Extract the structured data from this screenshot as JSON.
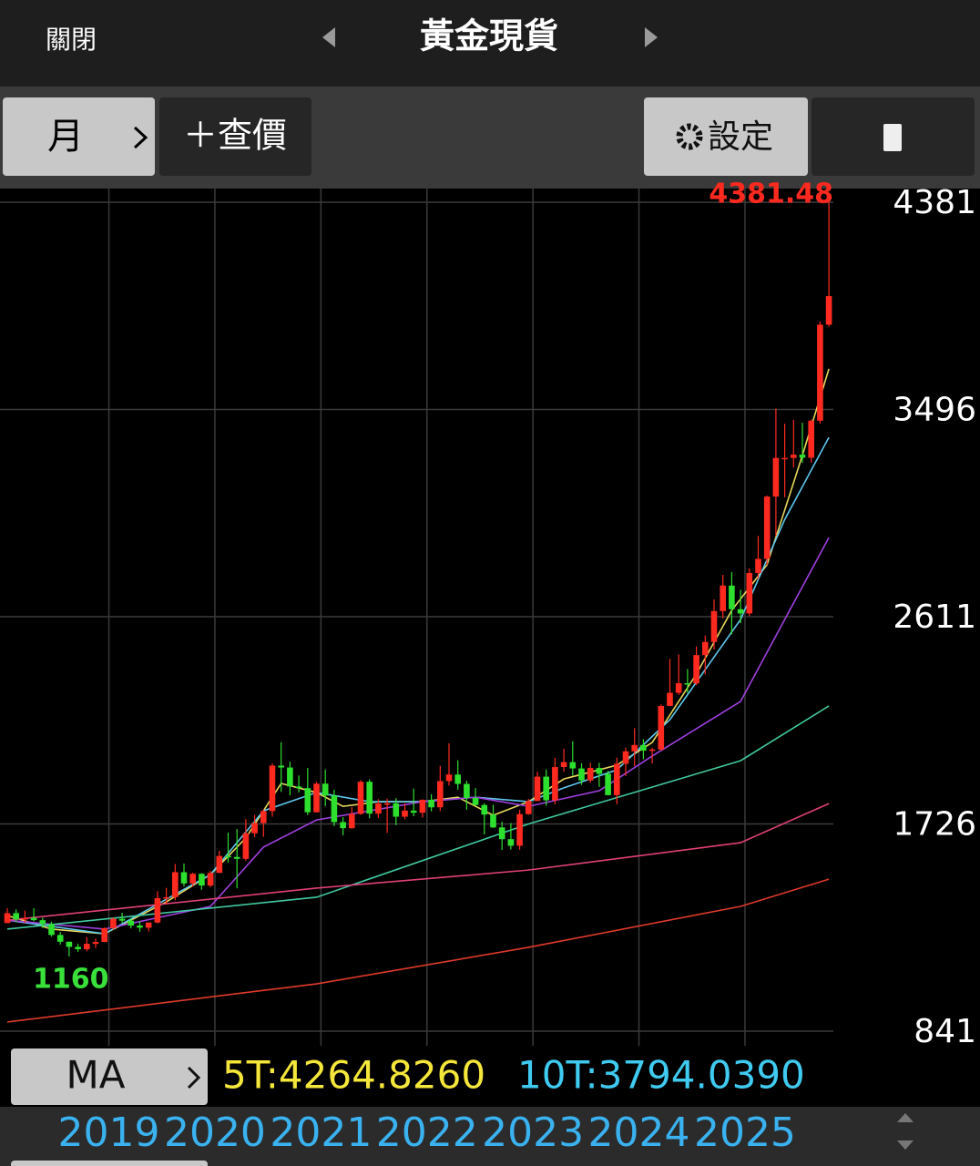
{
  "header": {
    "close": "關閉",
    "title": "黃金現貨"
  },
  "toolbar": {
    "period": "月",
    "quote": "＋查價",
    "settings": "設定"
  },
  "chart": {
    "type": "candlestick",
    "ylim": [
      841,
      4381
    ],
    "yticks": [
      4381,
      3496,
      2611,
      1726,
      841
    ],
    "high_label": 4381.48,
    "low_label": 1160,
    "years": [
      2019,
      2020,
      2021,
      2022,
      2023,
      2024,
      2025
    ],
    "candles": [
      [
        1303,
        1366,
        1302,
        1345
      ],
      [
        1345,
        1361,
        1307,
        1318
      ],
      [
        1318,
        1356,
        1303,
        1325
      ],
      [
        1325,
        1366,
        1310,
        1315
      ],
      [
        1315,
        1326,
        1282,
        1298
      ],
      [
        1298,
        1309,
        1245,
        1252
      ],
      [
        1252,
        1265,
        1211,
        1223
      ],
      [
        1223,
        1224,
        1160,
        1201
      ],
      [
        1201,
        1214,
        1180,
        1191
      ],
      [
        1191,
        1243,
        1182,
        1214
      ],
      [
        1214,
        1237,
        1196,
        1222
      ],
      [
        1222,
        1284,
        1221,
        1281
      ],
      [
        1281,
        1326,
        1275,
        1321
      ],
      [
        1321,
        1347,
        1303,
        1313
      ],
      [
        1313,
        1324,
        1280,
        1292
      ],
      [
        1292,
        1310,
        1266,
        1283
      ],
      [
        1283,
        1306,
        1267,
        1305
      ],
      [
        1305,
        1439,
        1301,
        1409
      ],
      [
        1409,
        1453,
        1382,
        1413
      ],
      [
        1413,
        1555,
        1400,
        1520
      ],
      [
        1520,
        1557,
        1459,
        1472
      ],
      [
        1472,
        1518,
        1458,
        1513
      ],
      [
        1513,
        1516,
        1445,
        1463
      ],
      [
        1463,
        1525,
        1455,
        1517
      ],
      [
        1517,
        1611,
        1517,
        1589
      ],
      [
        1589,
        1689,
        1562,
        1585
      ],
      [
        1585,
        1704,
        1451,
        1577
      ],
      [
        1577,
        1747,
        1568,
        1686
      ],
      [
        1686,
        1765,
        1670,
        1730
      ],
      [
        1730,
        1789,
        1671,
        1781
      ],
      [
        1781,
        1984,
        1757,
        1975
      ],
      [
        1975,
        2075,
        1863,
        1967
      ],
      [
        1967,
        1992,
        1848,
        1886
      ],
      [
        1886,
        1933,
        1860,
        1879
      ],
      [
        1879,
        1965,
        1764,
        1776
      ],
      [
        1776,
        1906,
        1775,
        1898
      ],
      [
        1898,
        1959,
        1802,
        1847
      ],
      [
        1847,
        1872,
        1717,
        1734
      ],
      [
        1734,
        1755,
        1677,
        1708
      ],
      [
        1708,
        1798,
        1705,
        1769
      ],
      [
        1769,
        1913,
        1765,
        1906
      ],
      [
        1906,
        1916,
        1750,
        1770
      ],
      [
        1770,
        1832,
        1751,
        1814
      ],
      [
        1814,
        1834,
        1688,
        1814
      ],
      [
        1814,
        1836,
        1721,
        1757
      ],
      [
        1757,
        1814,
        1746,
        1783
      ],
      [
        1783,
        1877,
        1759,
        1774
      ],
      [
        1774,
        1831,
        1753,
        1829
      ],
      [
        1829,
        1853,
        1780,
        1797
      ],
      [
        1797,
        1974,
        1781,
        1909
      ],
      [
        1909,
        2070,
        1890,
        1937
      ],
      [
        1937,
        1998,
        1872,
        1897
      ],
      [
        1897,
        1910,
        1787,
        1837
      ],
      [
        1837,
        1879,
        1805,
        1807
      ],
      [
        1807,
        1814,
        1681,
        1766
      ],
      [
        1766,
        1808,
        1709,
        1711
      ],
      [
        1711,
        1735,
        1615,
        1661
      ],
      [
        1661,
        1730,
        1617,
        1633
      ],
      [
        1633,
        1786,
        1616,
        1768
      ],
      [
        1768,
        1833,
        1765,
        1824
      ],
      [
        1824,
        1949,
        1823,
        1928
      ],
      [
        1928,
        1959,
        1804,
        1827
      ],
      [
        1827,
        2009,
        1810,
        1969
      ],
      [
        1969,
        2048,
        1949,
        1990
      ],
      [
        1990,
        2079,
        1932,
        1963
      ],
      [
        1963,
        1985,
        1893,
        1912
      ],
      [
        1912,
        1987,
        1902,
        1965
      ],
      [
        1965,
        1987,
        1884,
        1940
      ],
      [
        1940,
        1953,
        1848,
        1849
      ],
      [
        1849,
        2009,
        1810,
        1983
      ],
      [
        1983,
        2052,
        1931,
        2036
      ],
      [
        2036,
        2135,
        1973,
        2063
      ],
      [
        2063,
        2088,
        2002,
        2039
      ],
      [
        2039,
        2051,
        1984,
        2044
      ],
      [
        2044,
        2236,
        2039,
        2230
      ],
      [
        2230,
        2431,
        2229,
        2286
      ],
      [
        2286,
        2450,
        2277,
        2327
      ],
      [
        2327,
        2388,
        2286,
        2326
      ],
      [
        2326,
        2484,
        2318,
        2447
      ],
      [
        2447,
        2531,
        2364,
        2503
      ],
      [
        2503,
        2685,
        2471,
        2635
      ],
      [
        2635,
        2790,
        2604,
        2744
      ],
      [
        2744,
        2801,
        2536,
        2643
      ],
      [
        2643,
        2726,
        2583,
        2625
      ],
      [
        2625,
        2817,
        2614,
        2798
      ],
      [
        2798,
        2956,
        2772,
        2858
      ],
      [
        2858,
        3128,
        2833,
        3124
      ],
      [
        3124,
        3500,
        2957,
        3289
      ],
      [
        3289,
        3435,
        3121,
        3289
      ],
      [
        3289,
        3452,
        3248,
        3303
      ],
      [
        3303,
        3439,
        3268,
        3290
      ],
      [
        3290,
        3453,
        3268,
        3448
      ],
      [
        3448,
        3872,
        3436,
        3858
      ],
      [
        3858,
        4381,
        3850,
        3980
      ]
    ],
    "ma_lines": [
      {
        "color": "#e8d85a",
        "points": [
          [
            0,
            1335
          ],
          [
            5,
            1277
          ],
          [
            11,
            1257
          ],
          [
            18,
            1393
          ],
          [
            23,
            1510
          ],
          [
            27,
            1666
          ],
          [
            31,
            1899
          ],
          [
            35,
            1860
          ],
          [
            38,
            1801
          ],
          [
            42,
            1821
          ],
          [
            47,
            1821
          ],
          [
            51,
            1840
          ],
          [
            55,
            1763
          ],
          [
            59,
            1821
          ],
          [
            63,
            1918
          ],
          [
            69,
            1977
          ],
          [
            73,
            2074
          ],
          [
            78,
            2366
          ],
          [
            82,
            2638
          ],
          [
            86,
            2833
          ],
          [
            90,
            3300
          ],
          [
            93,
            3669
          ]
        ]
      },
      {
        "color": "#5ec8ee",
        "points": [
          [
            0,
            1315
          ],
          [
            11,
            1257
          ],
          [
            23,
            1510
          ],
          [
            29,
            1782
          ],
          [
            35,
            1860
          ],
          [
            41,
            1821
          ],
          [
            47,
            1821
          ],
          [
            53,
            1840
          ],
          [
            59,
            1821
          ],
          [
            63,
            1880
          ],
          [
            69,
            1957
          ],
          [
            75,
            2171
          ],
          [
            83,
            2599
          ],
          [
            88,
            3026
          ],
          [
            93,
            3377
          ]
        ]
      },
      {
        "color": "#a040e0",
        "points": [
          [
            0,
            1315
          ],
          [
            11,
            1277
          ],
          [
            23,
            1374
          ],
          [
            29,
            1627
          ],
          [
            35,
            1743
          ],
          [
            47,
            1821
          ],
          [
            53,
            1840
          ],
          [
            59,
            1801
          ],
          [
            67,
            1868
          ],
          [
            73,
            2016
          ],
          [
            83,
            2249
          ],
          [
            93,
            2949
          ]
        ]
      },
      {
        "color": "#40c8a0",
        "points": [
          [
            0,
            1277
          ],
          [
            35,
            1413
          ],
          [
            59,
            1726
          ],
          [
            83,
            1996
          ],
          [
            93,
            2230
          ]
        ]
      },
      {
        "color": "#e0407a",
        "points": [
          [
            0,
            1315
          ],
          [
            35,
            1452
          ],
          [
            59,
            1529
          ],
          [
            83,
            1646
          ],
          [
            93,
            1813
          ]
        ]
      },
      {
        "color": "#e03a2a",
        "points": [
          [
            0,
            880
          ],
          [
            35,
            1043
          ],
          [
            59,
            1199
          ],
          [
            83,
            1374
          ],
          [
            93,
            1490
          ]
        ]
      }
    ]
  },
  "ma_bar": {
    "button": "MA",
    "ma5": "5T:4264.8260",
    "ma10": "10T:3794.0390"
  }
}
